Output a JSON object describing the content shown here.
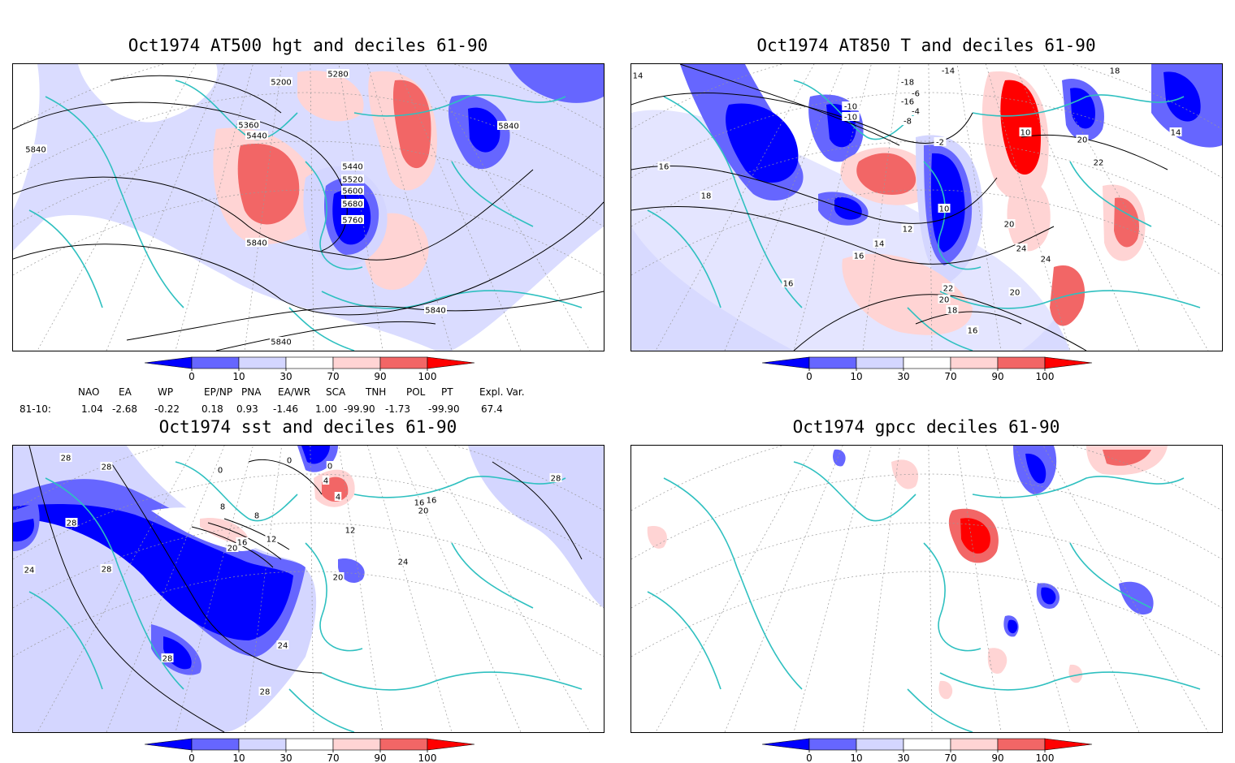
{
  "panels": [
    {
      "title": "Oct1974 AT500 hgt and deciles 61-90",
      "contour_labels": [
        "5280",
        "5200",
        "5360",
        "5440",
        "5840",
        "5440",
        "5520",
        "5600",
        "5680",
        "5760",
        "5840",
        "5840",
        "5840",
        "5840"
      ]
    },
    {
      "title": "Oct1974 AT850 T and deciles 61-90",
      "contour_labels": [
        "14",
        "-14",
        "-10",
        "-18",
        "-16",
        "-10",
        "-6",
        "-4",
        "-8",
        "-2",
        "10",
        "18",
        "14",
        "20",
        "22",
        "16",
        "18",
        "10",
        "12",
        "14",
        "16",
        "20",
        "24",
        "24",
        "22",
        "20",
        "20",
        "18",
        "16",
        "16"
      ]
    },
    {
      "title": "Oct1974 sst and deciles 61-90",
      "contour_labels": [
        "28",
        "28",
        "24",
        "28",
        "28",
        "0",
        "0",
        "0",
        "4",
        "4",
        "8",
        "8",
        "12",
        "16",
        "20",
        "12",
        "16",
        "20",
        "24",
        "20",
        "24",
        "28",
        "28",
        "28",
        "16"
      ]
    },
    {
      "title": "Oct1974 gpcc deciles 61-90",
      "contour_labels": []
    }
  ],
  "colorbar": {
    "ticks": [
      "0",
      "10",
      "30",
      "70",
      "90",
      "100"
    ],
    "colors": [
      "#0000ff",
      "#6666ff",
      "#d4d6ff",
      "#ffffff",
      "#ffd4d4",
      "#f26666",
      "#ff0000"
    ]
  },
  "indices": {
    "header": [
      "NAO",
      "EA",
      "WP",
      "EP/NP",
      "PNA",
      "EA/WR",
      "SCA",
      "TNH",
      "POL",
      "PT",
      "Expl. Var."
    ],
    "row_label": "81-10:",
    "values": [
      "1.04",
      "-2.68",
      "-0.22",
      "0.18",
      "0.93",
      "-1.46",
      "1.00",
      "-99.90",
      "-1.73",
      "-99.90",
      "67.4"
    ]
  },
  "colors": {
    "coast": "#2fc0c0",
    "contour": "#000000",
    "grid": "#999999"
  }
}
